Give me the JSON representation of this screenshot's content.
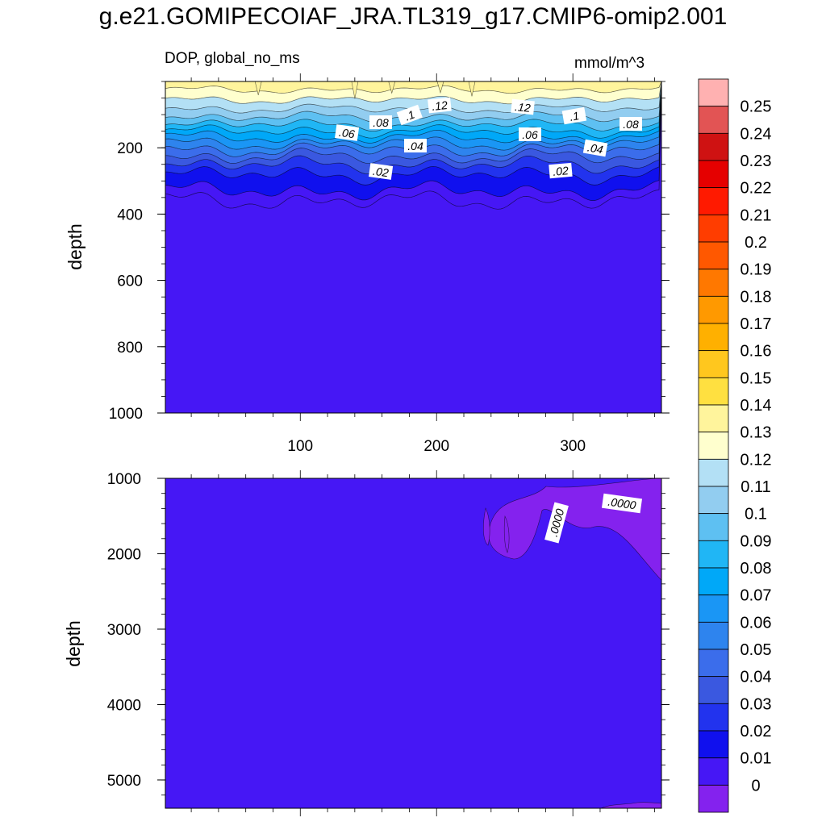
{
  "title": "g.e21.GOMIPECOIAF_JRA.TL319_g17.CMIP6-omip2.001",
  "subtitle_left": "DOP, global_no_ms",
  "subtitle_right": "mmol/m^3",
  "chart_data": [
    {
      "type": "contour",
      "panel": "upper",
      "ylabel": "depth",
      "xlim": [
        1,
        365
      ],
      "ylim": [
        0,
        1000
      ],
      "y_inverted": true,
      "x_ticks": [
        100,
        200,
        300
      ],
      "y_ticks": [
        200,
        400,
        600,
        800,
        1000
      ],
      "depth_profile": [
        {
          "depth": 10,
          "value": 0.13
        },
        {
          "depth": 40,
          "value": 0.125
        },
        {
          "depth": 70,
          "value": 0.115
        },
        {
          "depth": 95,
          "value": 0.105
        },
        {
          "depth": 120,
          "value": 0.095
        },
        {
          "depth": 140,
          "value": 0.085
        },
        {
          "depth": 160,
          "value": 0.075
        },
        {
          "depth": 178,
          "value": 0.065
        },
        {
          "depth": 196,
          "value": 0.055
        },
        {
          "depth": 215,
          "value": 0.045
        },
        {
          "depth": 240,
          "value": 0.035
        },
        {
          "depth": 262,
          "value": 0.025
        },
        {
          "depth": 300,
          "value": 0.015
        },
        {
          "depth": 360,
          "value": 0.005
        },
        {
          "depth": 1000,
          "value": 0.0
        }
      ],
      "contour_labels": [
        ".12",
        ".12",
        ".1",
        ".1",
        ".08",
        ".08",
        ".06",
        ".06",
        ".04",
        ".04",
        ".02",
        ".02"
      ]
    },
    {
      "type": "contour",
      "panel": "lower",
      "ylabel": "depth",
      "xlim": [
        1,
        365
      ],
      "ylim": [
        1000,
        5375
      ],
      "y_inverted": true,
      "y_ticks": [
        1000,
        2000,
        3000,
        4000,
        5000
      ],
      "background_value": 0.0,
      "negative_patches": [
        {
          "x_range": [
            233,
            365
          ],
          "depth_range": [
            1000,
            2350
          ],
          "value": -0.001
        }
      ],
      "contour_labels": [
        ".0000",
        ".0000"
      ]
    }
  ],
  "colorbar": {
    "labels": [
      "0.25",
      "0.24",
      "0.23",
      "0.22",
      "0.21",
      "0.2",
      "0.19",
      "0.18",
      "0.17",
      "0.16",
      "0.15",
      "0.14",
      "0.13",
      "0.12",
      "0.11",
      "0.1",
      "0.09",
      "0.08",
      "0.07",
      "0.06",
      "0.05",
      "0.04",
      "0.03",
      "0.02",
      "0.01",
      "0"
    ],
    "colors_top_to_bottom": [
      "#ffb1b1",
      "#e25454",
      "#cf1212",
      "#e50000",
      "#ff1a00",
      "#ff3d00",
      "#ff5800",
      "#ff7800",
      "#ff9900",
      "#ffb000",
      "#ffc71e",
      "#ffe040",
      "#fff49c",
      "#ffffce",
      "#b3e0f5",
      "#92cdf0",
      "#5ec0f2",
      "#20b6f5",
      "#00a8f8",
      "#1a96f5",
      "#2e84ee",
      "#3b6deb",
      "#3a58e0",
      "#2233ee",
      "#1010ee",
      "#4617f5",
      "#8422ee"
    ]
  },
  "palette": {
    "background": "#4617f5",
    "negative": "#8422ee"
  }
}
